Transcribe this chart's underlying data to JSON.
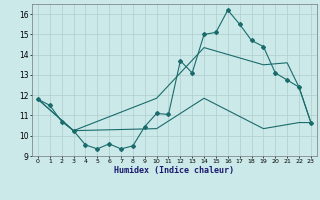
{
  "xlabel": "Humidex (Indice chaleur)",
  "xlim": [
    -0.5,
    23.5
  ],
  "ylim": [
    9,
    16.5
  ],
  "yticks": [
    9,
    10,
    11,
    12,
    13,
    14,
    15,
    16
  ],
  "xticks": [
    0,
    1,
    2,
    3,
    4,
    5,
    6,
    7,
    8,
    9,
    10,
    11,
    12,
    13,
    14,
    15,
    16,
    17,
    18,
    19,
    20,
    21,
    22,
    23
  ],
  "bg_color": "#cce9e9",
  "grid_color": "#b0cccc",
  "line_color": "#1a6b6b",
  "line1_x": [
    0,
    1,
    2,
    3,
    4,
    5,
    6,
    7,
    8,
    9,
    10,
    11,
    12,
    13,
    14,
    15,
    16,
    17,
    18,
    19,
    20,
    21,
    22,
    23
  ],
  "line1_y": [
    11.8,
    11.5,
    10.7,
    10.25,
    9.55,
    9.35,
    9.6,
    9.35,
    9.5,
    10.45,
    11.1,
    11.05,
    13.7,
    13.1,
    15.0,
    15.1,
    16.2,
    15.5,
    14.7,
    14.4,
    13.1,
    12.75,
    12.4,
    10.65
  ],
  "line2_x": [
    0,
    3,
    10,
    14,
    19,
    21,
    22,
    23
  ],
  "line2_y": [
    11.8,
    10.25,
    11.85,
    14.35,
    13.5,
    13.6,
    12.4,
    10.65
  ],
  "line3_x": [
    0,
    3,
    10,
    14,
    19,
    22,
    23
  ],
  "line3_y": [
    11.8,
    10.25,
    10.35,
    11.85,
    10.35,
    10.65,
    10.65
  ]
}
